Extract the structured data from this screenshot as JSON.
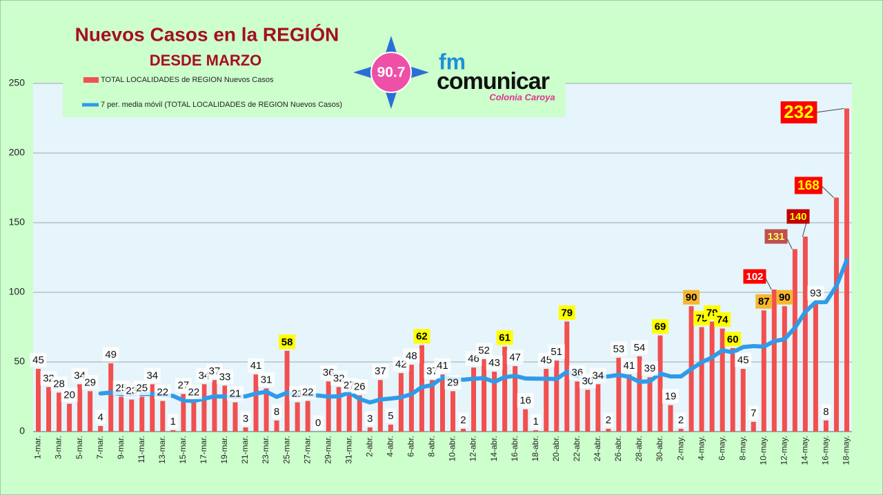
{
  "chart_data": {
    "type": "bar",
    "title": "Nuevos Casos en la REGIÓN",
    "subtitle": "DESDE MARZO",
    "logo": {
      "frequency": "90.7",
      "brand_fm": "fm",
      "brand": "comunicar",
      "city": "Colonia Caroya"
    },
    "categories": [
      "1-mar.",
      null,
      "3-mar.",
      null,
      "5-mar.",
      null,
      "7-mar.",
      null,
      "9-mar.",
      null,
      "11-mar.",
      null,
      "13-mar.",
      null,
      "15-mar.",
      null,
      "17-mar.",
      null,
      "19-mar.",
      null,
      "21-mar.",
      null,
      "23-mar.",
      null,
      "25-mar.",
      null,
      "27-mar.",
      null,
      "29-mar.",
      null,
      "31-mar.",
      null,
      "2-abr.",
      null,
      "4-abr.",
      null,
      "6-abr.",
      null,
      "8-abr.",
      null,
      "10-abr.",
      null,
      "12-abr.",
      null,
      "14-abr.",
      null,
      "16-abr.",
      null,
      "18-abr.",
      null,
      "20-abr.",
      null,
      "22-abr.",
      null,
      "24-abr.",
      null,
      "26-abr.",
      null,
      "28-abr.",
      null,
      "30-abr.",
      null,
      "2-may.",
      null,
      "4-may.",
      null,
      "6-may.",
      null,
      "8-may.",
      null,
      "10-may.",
      null,
      "12-may.",
      null,
      "14-may.",
      null,
      "16-may.",
      null,
      "18-may."
    ],
    "series": [
      {
        "name": "TOTAL LOCALIDADES de REGION Nuevos Casos",
        "type": "bar",
        "color": "#f24f4f",
        "values": [
          45,
          32,
          28,
          20,
          34,
          29,
          4,
          49,
          25,
          23,
          25,
          34,
          22,
          1,
          27,
          22,
          34,
          37,
          33,
          21,
          3,
          41,
          31,
          8,
          58,
          21,
          22,
          0,
          36,
          32,
          27,
          26,
          3,
          37,
          5,
          42,
          48,
          62,
          37,
          41,
          29,
          2,
          46,
          52,
          43,
          61,
          47,
          16,
          1,
          45,
          51,
          79,
          36,
          30,
          34,
          2,
          53,
          41,
          54,
          39,
          69,
          19,
          2,
          90,
          75,
          79,
          74,
          60,
          45,
          7,
          87,
          102,
          90,
          131,
          140,
          93,
          8,
          168,
          232
        ]
      },
      {
        "name": "7 per. media móvil (TOTAL LOCALIDADES de REGION Nuevos Casos)",
        "type": "line",
        "color": "#2f9be8",
        "values": [
          null,
          null,
          null,
          null,
          null,
          null,
          27.4,
          28,
          27,
          26.3,
          27,
          27,
          26,
          25.6,
          22.4,
          22,
          23.6,
          25.3,
          25.1,
          25,
          25.3,
          27.3,
          28.6,
          24.9,
          27.9,
          26.1,
          26.3,
          25.9,
          25.1,
          25.3,
          28,
          23.4,
          20.9,
          23,
          23.7,
          24.6,
          26.9,
          31.9,
          33.4,
          38.9,
          37.7,
          37.3,
          37.9,
          38.4,
          35.7,
          39.1,
          40,
          38.1,
          38,
          37.9,
          37.7,
          42.9,
          39.3,
          36.9,
          39.4,
          39.6,
          40.7,
          39.3,
          35.7,
          36.1,
          41.7,
          39.6,
          39.6,
          44.9,
          49.7,
          53.3,
          58.3,
          57,
          60.7,
          61.4,
          61,
          64.9,
          66.4,
          74.6,
          86,
          92.9,
          93,
          104.6,
          123.1
        ]
      }
    ],
    "ylim": [
      0,
      250
    ],
    "yticks": [
      0,
      50,
      100,
      150,
      200,
      250
    ],
    "grid": true
  }
}
